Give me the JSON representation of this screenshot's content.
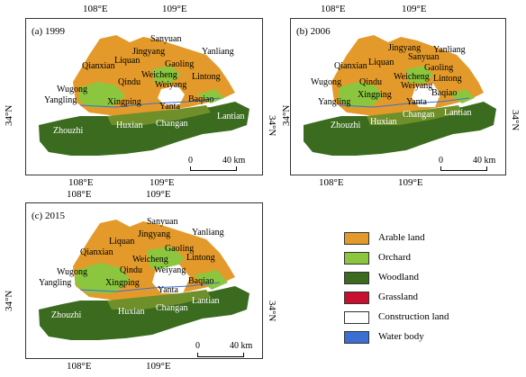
{
  "panels": [
    {
      "id": "a",
      "title": "(a) 1999",
      "top_coords": [
        "108°E",
        "109°E"
      ],
      "bottom_coords": [
        "108°E",
        "109°E"
      ],
      "left_coord": "34°N",
      "right_coord": "34°N",
      "scale": {
        "zero": "0",
        "value": "40 km"
      },
      "places": [
        "Sanyuan",
        "Jingyang",
        "Yanliang",
        "Qianxian",
        "Liquan",
        "Gaoling",
        "Qindu",
        "Weicheng",
        "Lintong",
        "Wugong",
        "Weiyang",
        "Baqiao",
        "Yangling",
        "Xingping",
        "Yanta",
        "Zhouzhi",
        "Huxian",
        "Changan",
        "Lantian"
      ]
    },
    {
      "id": "b",
      "title": "(b) 2006",
      "top_coords": [
        "108°E",
        "109°E"
      ],
      "bottom_coords": [
        "108°E",
        "109°E"
      ],
      "left_coord": "34°N",
      "right_coord": "34°N",
      "scale": {
        "zero": "0",
        "value": "40 km"
      },
      "places": [
        "Jingyang",
        "Sanyuan",
        "Yanliang",
        "Qianxian",
        "Liquan",
        "Gaoling",
        "Weicheng",
        "Lintong",
        "Wugong",
        "Qindu",
        "Weiyang",
        "Xingping",
        "Baqiao",
        "Yangling",
        "Yanta",
        "Zhouzhi",
        "Huxian",
        "Changan",
        "Lantian"
      ]
    },
    {
      "id": "c",
      "title": "(c) 2015",
      "top_coords": [
        "108°E",
        "109°E"
      ],
      "bottom_coords": [
        "108°E",
        "109°E"
      ],
      "left_coord": "34°N",
      "right_coord": "34°N",
      "scale": {
        "zero": "0",
        "value": "40 km"
      },
      "places": [
        "Sanyuan",
        "Jingyang",
        "Yanliang",
        "Liquan",
        "Qianxian",
        "Gaoling",
        "Weicheng",
        "Lintong",
        "Wugong",
        "Qindu",
        "Weiyang",
        "Yangling",
        "Xingping",
        "Baqiao",
        "Yanta",
        "Zhouzhi",
        "Huxian",
        "Changan",
        "Lantian"
      ]
    }
  ],
  "legend": [
    {
      "label": "Arable land",
      "color": "#e39a2a"
    },
    {
      "label": "Orchard",
      "color": "#8cc63f"
    },
    {
      "label": "Woodland",
      "color": "#3a6b1e"
    },
    {
      "label": "Grassland",
      "color": "#c8102e"
    },
    {
      "label": "Construction land",
      "color": "#ffffff"
    },
    {
      "label": "Water body",
      "color": "#3b6fd1"
    }
  ]
}
